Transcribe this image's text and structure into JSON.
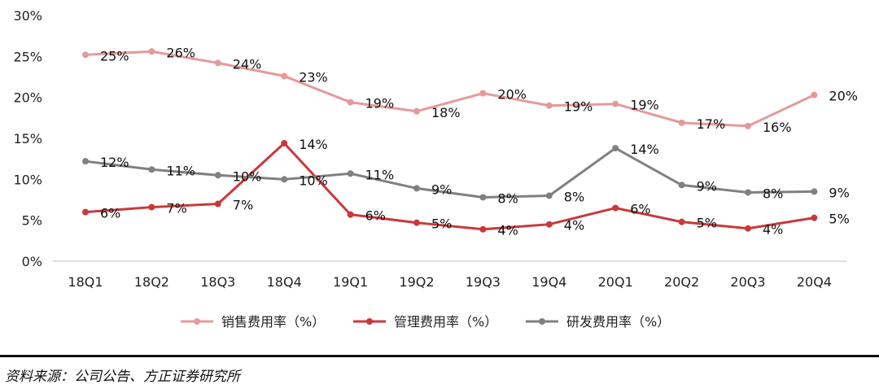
{
  "chart_data": {
    "type": "line",
    "categories": [
      "18Q1",
      "18Q2",
      "18Q3",
      "18Q4",
      "19Q1",
      "19Q2",
      "19Q3",
      "19Q4",
      "20Q1",
      "20Q2",
      "20Q3",
      "20Q4"
    ],
    "ylim": [
      0,
      30
    ],
    "yticks": [
      "0%",
      "5%",
      "10%",
      "15%",
      "20%",
      "25%",
      "30%"
    ],
    "grid": false,
    "legend": "bottom",
    "series": [
      {
        "name": "销售费用率（%）",
        "color": "#e59a9a",
        "values": [
          25.2,
          25.6,
          24.2,
          22.6,
          19.4,
          18.3,
          20.5,
          19.0,
          19.2,
          16.9,
          16.5,
          20.3
        ],
        "labels": [
          "25%",
          "26%",
          "24%",
          "23%",
          "19%",
          "18%",
          "20%",
          "19%",
          "19%",
          "17%",
          "16%",
          "20%"
        ]
      },
      {
        "name": "管理费用率（%）",
        "color": "#c9393b",
        "values": [
          6.0,
          6.6,
          7.0,
          14.4,
          5.7,
          4.7,
          3.9,
          4.5,
          6.5,
          4.8,
          4.0,
          5.3
        ],
        "labels": [
          "6%",
          "7%",
          "7%",
          "14%",
          "6%",
          "5%",
          "4%",
          "4%",
          "6%",
          "5%",
          "4%",
          "5%"
        ]
      },
      {
        "name": "研发费用率（%）",
        "color": "#808080",
        "values": [
          12.2,
          11.2,
          10.5,
          10.0,
          10.7,
          8.9,
          7.8,
          8.0,
          13.8,
          9.3,
          8.4,
          8.5
        ],
        "labels": [
          "12%",
          "11%",
          "10%",
          "10%",
          "11%",
          "9%",
          "8%",
          "8%",
          "14%",
          "9%",
          "8%",
          "9%"
        ]
      }
    ]
  },
  "source": "资料来源：公司公告、方正证券研究所"
}
